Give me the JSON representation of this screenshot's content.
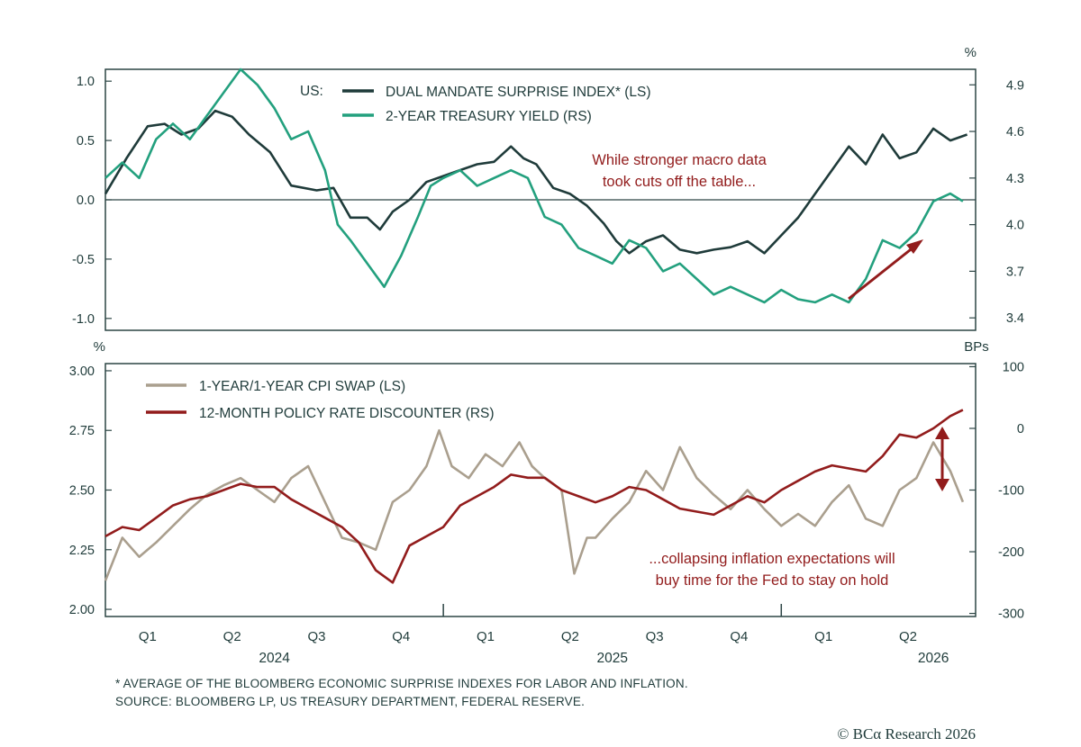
{
  "colors": {
    "frame": "#2c4544",
    "dark_green": "#1f3b3a",
    "teal": "#23a07e",
    "taupe": "#aa9f8e",
    "dark_red": "#921c1c"
  },
  "chart_data": [
    {
      "type": "line",
      "left_unit": "",
      "right_unit": "%",
      "left_axis": {
        "ylim": [
          -1.1,
          1.1
        ],
        "ticks": [
          -1.0,
          -0.5,
          0.0,
          0.5,
          1.0
        ],
        "tick_labels": [
          "-1.0",
          "-0.5",
          "0.0",
          "0.5",
          "1.0"
        ]
      },
      "right_axis": {
        "ylim": [
          3.32,
          5.0
        ],
        "ticks": [
          3.4,
          3.7,
          4.0,
          4.3,
          4.6,
          4.9
        ],
        "tick_labels": [
          "3.4",
          "3.7",
          "4.0",
          "4.3",
          "4.6",
          "4.9"
        ]
      },
      "x_range": [
        0,
        10.3
      ],
      "legend_prefix": "US:",
      "series": [
        {
          "name": "DUAL MANDATE SURPRISE INDEX* (LS)",
          "axis": "left",
          "color": "#1f3b3a",
          "x": [
            0,
            0.25,
            0.5,
            0.7,
            0.9,
            1.1,
            1.3,
            1.5,
            1.7,
            1.95,
            2.2,
            2.5,
            2.7,
            2.9,
            3.1,
            3.25,
            3.4,
            3.6,
            3.8,
            4.0,
            4.2,
            4.4,
            4.6,
            4.8,
            4.95,
            5.1,
            5.3,
            5.5,
            5.7,
            5.9,
            6.05,
            6.2,
            6.4,
            6.6,
            6.8,
            7.0,
            7.2,
            7.4,
            7.6,
            7.8,
            8.0,
            8.2,
            8.4,
            8.6,
            8.8,
            9.0,
            9.2,
            9.4,
            9.6,
            9.8,
            10.0,
            10.2
          ],
          "y": [
            0.05,
            0.35,
            0.62,
            0.64,
            0.55,
            0.6,
            0.75,
            0.7,
            0.55,
            0.4,
            0.12,
            0.08,
            0.1,
            -0.15,
            -0.15,
            -0.25,
            -0.1,
            0.0,
            0.15,
            0.2,
            0.25,
            0.3,
            0.32,
            0.45,
            0.35,
            0.3,
            0.1,
            0.05,
            -0.05,
            -0.2,
            -0.35,
            -0.45,
            -0.35,
            -0.3,
            -0.42,
            -0.45,
            -0.42,
            -0.4,
            -0.35,
            -0.45,
            -0.3,
            -0.15,
            0.05,
            0.25,
            0.45,
            0.3,
            0.55,
            0.35,
            0.4,
            0.6,
            0.5,
            0.55
          ]
        },
        {
          "name": "2-YEAR TREASURY YIELD (RS)",
          "axis": "right",
          "color": "#23a07e",
          "x": [
            0,
            0.2,
            0.4,
            0.6,
            0.8,
            1.0,
            1.2,
            1.4,
            1.6,
            1.8,
            2.0,
            2.2,
            2.4,
            2.6,
            2.75,
            2.9,
            3.1,
            3.3,
            3.5,
            3.7,
            3.85,
            4.0,
            4.2,
            4.4,
            4.6,
            4.8,
            5.0,
            5.2,
            5.4,
            5.6,
            5.8,
            6.0,
            6.2,
            6.4,
            6.6,
            6.8,
            7.0,
            7.2,
            7.4,
            7.6,
            7.8,
            8.0,
            8.2,
            8.4,
            8.6,
            8.8,
            9.0,
            9.2,
            9.4,
            9.6,
            9.8,
            10.0,
            10.15
          ],
          "y": [
            4.3,
            4.4,
            4.3,
            4.55,
            4.65,
            4.55,
            4.7,
            4.85,
            5.0,
            4.9,
            4.75,
            4.55,
            4.6,
            4.35,
            4.0,
            3.9,
            3.75,
            3.6,
            3.8,
            4.05,
            4.25,
            4.3,
            4.35,
            4.25,
            4.3,
            4.35,
            4.3,
            4.05,
            4.0,
            3.85,
            3.8,
            3.75,
            3.9,
            3.85,
            3.7,
            3.75,
            3.65,
            3.55,
            3.6,
            3.55,
            3.5,
            3.58,
            3.52,
            3.5,
            3.55,
            3.5,
            3.65,
            3.9,
            3.85,
            3.95,
            4.15,
            4.2,
            4.15
          ]
        }
      ],
      "annotations": [
        "While stronger macro data",
        "took cuts off the table..."
      ]
    },
    {
      "type": "line",
      "left_unit": "%",
      "right_unit": "BPs",
      "left_axis": {
        "ylim": [
          1.97,
          3.03
        ],
        "ticks": [
          2.0,
          2.25,
          2.5,
          2.75,
          3.0
        ],
        "tick_labels": [
          "2.00",
          "2.25",
          "2.50",
          "2.75",
          "3.00"
        ]
      },
      "right_axis": {
        "ylim": [
          -305,
          105
        ],
        "ticks": [
          -300,
          -200,
          -100,
          0,
          100
        ],
        "tick_labels": [
          "-300",
          "-200",
          "-100",
          "0",
          "100"
        ]
      },
      "x_range": [
        0,
        10.3
      ],
      "series": [
        {
          "name": "1-YEAR/1-YEAR CPI SWAP (LS)",
          "axis": "left",
          "color": "#aa9f8e",
          "x": [
            0,
            0.2,
            0.4,
            0.6,
            0.8,
            1.0,
            1.2,
            1.4,
            1.6,
            1.8,
            2.0,
            2.2,
            2.4,
            2.6,
            2.8,
            3.0,
            3.2,
            3.4,
            3.6,
            3.8,
            3.95,
            4.1,
            4.3,
            4.5,
            4.7,
            4.9,
            5.05,
            5.2,
            5.4,
            5.55,
            5.7,
            5.8,
            6.0,
            6.2,
            6.4,
            6.6,
            6.8,
            7.0,
            7.2,
            7.4,
            7.6,
            7.8,
            8.0,
            8.2,
            8.4,
            8.6,
            8.8,
            9.0,
            9.2,
            9.4,
            9.6,
            9.8,
            10.0,
            10.15
          ],
          "y": [
            2.12,
            2.3,
            2.22,
            2.28,
            2.35,
            2.42,
            2.48,
            2.52,
            2.55,
            2.5,
            2.45,
            2.55,
            2.6,
            2.45,
            2.3,
            2.28,
            2.25,
            2.45,
            2.5,
            2.6,
            2.75,
            2.6,
            2.55,
            2.65,
            2.6,
            2.7,
            2.6,
            2.55,
            2.5,
            2.15,
            2.3,
            2.3,
            2.38,
            2.45,
            2.58,
            2.5,
            2.68,
            2.55,
            2.48,
            2.42,
            2.5,
            2.42,
            2.35,
            2.4,
            2.35,
            2.45,
            2.52,
            2.38,
            2.35,
            2.5,
            2.55,
            2.7,
            2.58,
            2.45
          ]
        },
        {
          "name": "12-MONTH POLICY RATE DISCOUNTER (RS)",
          "axis": "right",
          "color": "#921c1c",
          "x": [
            0,
            0.2,
            0.4,
            0.6,
            0.8,
            1.0,
            1.2,
            1.4,
            1.6,
            1.8,
            2.0,
            2.2,
            2.4,
            2.6,
            2.8,
            3.0,
            3.2,
            3.4,
            3.6,
            3.8,
            4.0,
            4.2,
            4.4,
            4.6,
            4.8,
            5.0,
            5.2,
            5.4,
            5.6,
            5.8,
            6.0,
            6.2,
            6.4,
            6.6,
            6.8,
            7.0,
            7.2,
            7.4,
            7.6,
            7.8,
            8.0,
            8.2,
            8.4,
            8.6,
            8.8,
            9.0,
            9.2,
            9.4,
            9.6,
            9.8,
            10.0,
            10.15
          ],
          "y": [
            -175,
            -160,
            -165,
            -145,
            -125,
            -115,
            -110,
            -100,
            -90,
            -95,
            -95,
            -115,
            -130,
            -145,
            -160,
            -185,
            -230,
            -250,
            -190,
            -175,
            -160,
            -125,
            -110,
            -95,
            -75,
            -80,
            -80,
            -100,
            -110,
            -120,
            -110,
            -95,
            -100,
            -115,
            -130,
            -135,
            -140,
            -125,
            -110,
            -120,
            -100,
            -85,
            -70,
            -60,
            -65,
            -70,
            -45,
            -10,
            -15,
            0,
            20,
            30
          ]
        }
      ],
      "annotations": [
        "...collapsing inflation expectations will",
        "buy time for the Fed to stay on hold"
      ]
    }
  ],
  "x_axis": {
    "quarters": [
      {
        "label": "Q1",
        "x": 0.5
      },
      {
        "label": "Q2",
        "x": 1.5
      },
      {
        "label": "Q3",
        "x": 2.5
      },
      {
        "label": "Q4",
        "x": 3.5
      },
      {
        "label": "Q1",
        "x": 4.5
      },
      {
        "label": "Q2",
        "x": 5.5
      },
      {
        "label": "Q3",
        "x": 6.5
      },
      {
        "label": "Q4",
        "x": 7.5
      },
      {
        "label": "Q1",
        "x": 8.5
      },
      {
        "label": "Q2",
        "x": 9.5
      }
    ],
    "years": [
      {
        "label": "2024",
        "x": 2.0
      },
      {
        "label": "2025",
        "x": 6.0
      },
      {
        "label": "2026",
        "x": 9.8
      }
    ],
    "year_boundaries": [
      4.0,
      8.0
    ]
  },
  "footnotes": {
    "note": "* AVERAGE OF THE BLOOMBERG ECONOMIC SURPRISE INDEXES FOR LABOR AND INFLATION.",
    "source": "SOURCE: BLOOMBERG LP, US TREASURY DEPARTMENT, FEDERAL RESERVE."
  },
  "copyright": "© BCα Research 2026"
}
